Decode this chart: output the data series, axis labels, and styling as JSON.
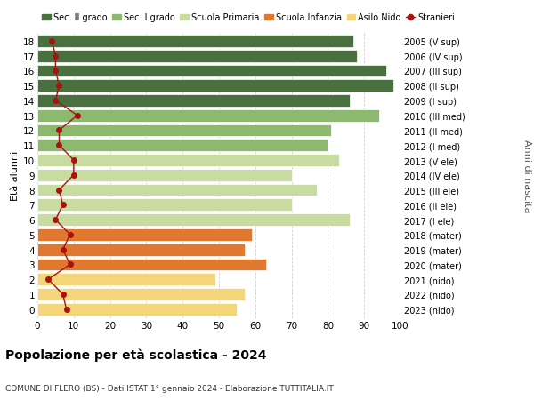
{
  "ages": [
    0,
    1,
    2,
    3,
    4,
    5,
    6,
    7,
    8,
    9,
    10,
    11,
    12,
    13,
    14,
    15,
    16,
    17,
    18
  ],
  "labels_right": [
    "2023 (nido)",
    "2022 (nido)",
    "2021 (nido)",
    "2020 (mater)",
    "2019 (mater)",
    "2018 (mater)",
    "2017 (I ele)",
    "2016 (II ele)",
    "2015 (III ele)",
    "2014 (IV ele)",
    "2013 (V ele)",
    "2012 (I med)",
    "2011 (II med)",
    "2010 (III med)",
    "2009 (I sup)",
    "2008 (II sup)",
    "2007 (III sup)",
    "2006 (IV sup)",
    "2005 (V sup)"
  ],
  "bar_values": [
    55,
    57,
    49,
    63,
    57,
    59,
    86,
    70,
    77,
    70,
    83,
    80,
    81,
    94,
    86,
    98,
    96,
    88,
    87
  ],
  "bar_colors": [
    "#f5d57a",
    "#f5d57a",
    "#f5d57a",
    "#e07830",
    "#e07830",
    "#e07830",
    "#c8dba0",
    "#c8dba0",
    "#c8dba0",
    "#c8dba0",
    "#c8dba0",
    "#8db870",
    "#8db870",
    "#8db870",
    "#4a7040",
    "#4a7040",
    "#4a7040",
    "#4a7040",
    "#4a7040"
  ],
  "stranieri_values": [
    8,
    7,
    3,
    9,
    7,
    9,
    5,
    7,
    6,
    10,
    10,
    6,
    6,
    11,
    5,
    6,
    5,
    5,
    4
  ],
  "legend_labels": [
    "Sec. II grado",
    "Sec. I grado",
    "Scuola Primaria",
    "Scuola Infanzia",
    "Asilo Nido",
    "Stranieri"
  ],
  "legend_colors": [
    "#4a7040",
    "#8db870",
    "#c8dba0",
    "#e07830",
    "#f5d57a",
    "#aa1111"
  ],
  "ylabel_left": "Età alunni",
  "ylabel_right": "Anni di nascita",
  "title": "Popolazione per età scolastica - 2024",
  "subtitle": "COMUNE DI FLERO (BS) - Dati ISTAT 1° gennaio 2024 - Elaborazione TUTTITALIA.IT",
  "xlim": [
    0,
    100
  ],
  "xticks": [
    0,
    10,
    20,
    30,
    40,
    50,
    60,
    70,
    80,
    90,
    100
  ],
  "bg_color": "#ffffff",
  "bar_edge_color": "#ffffff",
  "stranieri_color": "#aa1111",
  "stranieri_marker": "o",
  "grid_color": "#d0d0d0"
}
